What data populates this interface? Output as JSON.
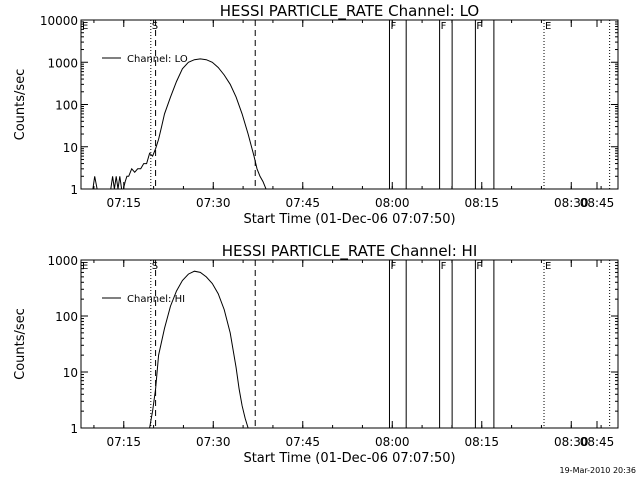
{
  "footer_timestamp": "19-Mar-2010 20:36",
  "chart_data": [
    {
      "type": "line",
      "title": "HESSI PARTICLE_RATE Channel: LO",
      "xlabel": "Start Time (01-Dec-06 07:07:50)",
      "ylabel": "Counts/sec",
      "x_unit": "minutes after 07:07:50",
      "xlim": [
        0,
        90
      ],
      "ylim": [
        1,
        10000
      ],
      "y_scale": "log",
      "xticks": [
        "07:15",
        "07:30",
        "07:45",
        "08:00",
        "08:15",
        "08:30",
        "08:45"
      ],
      "yticks": [
        "1",
        "10",
        "100",
        "1000",
        "10000"
      ],
      "legend": {
        "position": "top-left",
        "entries": [
          "Channel: LO"
        ]
      },
      "series": [
        {
          "name": "Channel: LO",
          "x": [
            0,
            2,
            2.3,
            2.7,
            3,
            5,
            5.3,
            5.6,
            5.9,
            6.2,
            6.5,
            6.8,
            7.1,
            7.4,
            7.7,
            8,
            8.5,
            9,
            9.5,
            10,
            10.5,
            11,
            11.5,
            12,
            12.5,
            13,
            13.5,
            14,
            15,
            16,
            17,
            18,
            19,
            20,
            21,
            22,
            23,
            24,
            25,
            26,
            27,
            28,
            29,
            29.5,
            30,
            30.5,
            31,
            31.5,
            32,
            32.5,
            33,
            40,
            90
          ],
          "y": [
            1,
            1,
            2,
            1,
            1,
            1,
            2,
            1,
            2,
            1,
            2,
            1,
            1,
            1.5,
            2,
            2,
            3,
            2.5,
            3,
            3,
            4,
            4,
            7,
            6,
            9,
            15,
            30,
            60,
            150,
            350,
            700,
            1000,
            1150,
            1200,
            1150,
            1000,
            750,
            500,
            300,
            150,
            60,
            20,
            6,
            3,
            2,
            1.5,
            1,
            1,
            1,
            1,
            1,
            1,
            1
          ]
        }
      ],
      "markers": [
        {
          "label": "E",
          "x": 0,
          "style": "dotted"
        },
        {
          "label": "S",
          "x": 11.7,
          "style": "dotted"
        },
        {
          "label": "",
          "x": 12.5,
          "style": "dashed"
        },
        {
          "label": "",
          "x": 29.2,
          "style": "dashed"
        },
        {
          "label": "F",
          "x": 51.7,
          "style": "solid"
        },
        {
          "label": "",
          "x": 54.5,
          "style": "solid"
        },
        {
          "label": "F",
          "x": 60.1,
          "style": "solid"
        },
        {
          "label": "",
          "x": 62.2,
          "style": "solid"
        },
        {
          "label": "F",
          "x": 66.1,
          "style": "solid"
        },
        {
          "label": "",
          "x": 69.2,
          "style": "solid"
        },
        {
          "label": "E",
          "x": 77.6,
          "style": "dotted"
        },
        {
          "label": "",
          "x": 88.6,
          "style": "dotted"
        }
      ]
    },
    {
      "type": "line",
      "title": "HESSI PARTICLE_RATE Channel: HI",
      "xlabel": "Start Time (01-Dec-06 07:07:50)",
      "ylabel": "Counts/sec",
      "x_unit": "minutes after 07:07:50",
      "xlim": [
        0,
        90
      ],
      "ylim": [
        1,
        1000
      ],
      "y_scale": "log",
      "xticks": [
        "07:15",
        "07:30",
        "07:45",
        "08:00",
        "08:15",
        "08:30",
        "08:45"
      ],
      "yticks": [
        "1",
        "10",
        "100",
        "1000"
      ],
      "legend": {
        "position": "top-left",
        "entries": [
          "Channel: HI"
        ]
      },
      "series": [
        {
          "name": "Channel: HI",
          "x": [
            0,
            11.5,
            12,
            12.5,
            13,
            14,
            15,
            16,
            17,
            18,
            19,
            20,
            21,
            22,
            23,
            24,
            25,
            26,
            26.5,
            27,
            27.5,
            28,
            28.5,
            90
          ],
          "y": [
            1,
            1,
            2,
            5,
            20,
            60,
            150,
            280,
            430,
            560,
            630,
            600,
            500,
            380,
            250,
            130,
            50,
            12,
            5,
            2.5,
            1.5,
            1,
            1,
            1
          ]
        }
      ],
      "markers": [
        {
          "label": "E",
          "x": 0,
          "style": "dotted"
        },
        {
          "label": "S",
          "x": 11.7,
          "style": "dotted"
        },
        {
          "label": "",
          "x": 12.5,
          "style": "dashed"
        },
        {
          "label": "",
          "x": 29.2,
          "style": "dashed"
        },
        {
          "label": "F",
          "x": 51.7,
          "style": "solid"
        },
        {
          "label": "",
          "x": 54.5,
          "style": "solid"
        },
        {
          "label": "F",
          "x": 60.1,
          "style": "solid"
        },
        {
          "label": "",
          "x": 62.2,
          "style": "solid"
        },
        {
          "label": "F",
          "x": 66.1,
          "style": "solid"
        },
        {
          "label": "",
          "x": 69.2,
          "style": "solid"
        },
        {
          "label": "E",
          "x": 77.6,
          "style": "dotted"
        },
        {
          "label": "",
          "x": 88.6,
          "style": "dotted"
        }
      ]
    }
  ]
}
